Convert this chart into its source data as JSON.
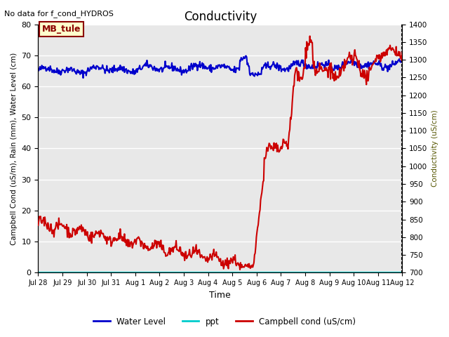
{
  "title": "Conductivity",
  "top_left_text": "No data for f_cond_HYDROS",
  "xlabel": "Time",
  "ylabel_left": "Campbell Cond (uS/m), Rain (mm), Water Level (cm)",
  "ylabel_right": "Conductivity (uS/cm)",
  "ylim_left": [
    0,
    80
  ],
  "ylim_right": [
    700,
    1400
  ],
  "yticks_left": [
    0,
    10,
    20,
    30,
    40,
    50,
    60,
    70,
    80
  ],
  "yticks_right": [
    700,
    750,
    800,
    850,
    900,
    950,
    1000,
    1050,
    1100,
    1150,
    1200,
    1250,
    1300,
    1350,
    1400
  ],
  "xtick_labels": [
    "Jul 28",
    "Jul 29",
    "Jul 30",
    "Jul 31",
    "Aug 1",
    "Aug 2",
    "Aug 3",
    "Aug 4",
    "Aug 5",
    "Aug 6",
    "Aug 7",
    "Aug 8",
    "Aug 9",
    "Aug 10",
    "Aug 11",
    "Aug 12"
  ],
  "bg_color": "#e8e8e8",
  "grid_color": "#ffffff",
  "annotation_box_text": "MB_tule",
  "annotation_box_facecolor": "#ffffcc",
  "annotation_box_edgecolor": "#8b0000",
  "annotation_box_textcolor": "#8b0000",
  "legend_entries": [
    "Water Level",
    "ppt",
    "Campbell cond (uS/cm)"
  ],
  "legend_colors": [
    "#0000cc",
    "#00cccc",
    "#cc0000"
  ],
  "water_level_color": "#0000cc",
  "ppt_color": "#00cccc",
  "campbell_color": "#cc0000"
}
